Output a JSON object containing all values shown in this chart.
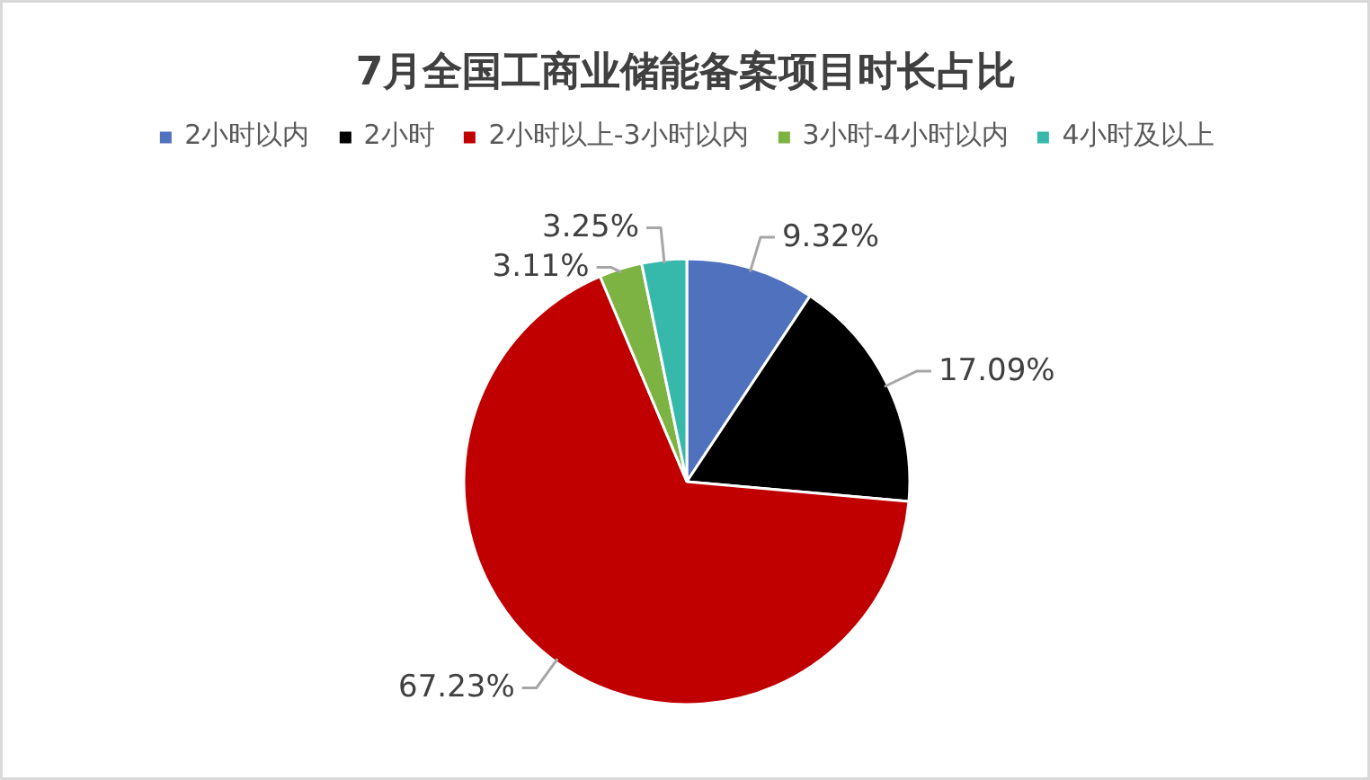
{
  "chart_data": {
    "type": "pie",
    "title": "7月全国工商业储能备案项目时长占比",
    "categories": [
      "2小时以内",
      "2小时",
      "2小时以上-3小时以内",
      "3小时-4小时以内",
      "4小时及以上"
    ],
    "values": [
      9.32,
      17.09,
      67.23,
      3.11,
      3.25
    ],
    "colors": [
      "#4f71be",
      "#000000",
      "#c00000",
      "#7cb342",
      "#36b8aa"
    ],
    "value_labels": [
      "9.32%",
      "17.09%",
      "67.23%",
      "3.11%",
      "3.25%"
    ],
    "legend": "top"
  }
}
